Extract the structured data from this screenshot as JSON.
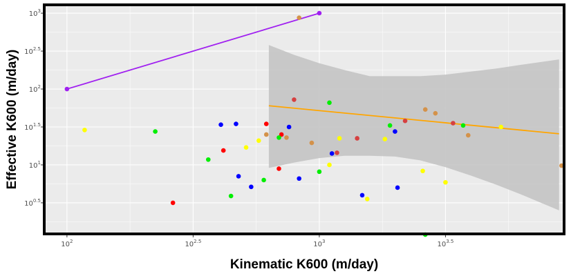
{
  "chart_data": {
    "type": "scatter",
    "title": "",
    "xlabel": "Kinematic K600 (m/day)",
    "ylabel": "Effective K600 (m/day)",
    "x_scale": "log10",
    "y_scale": "log10",
    "xlim_log10": [
      1.91,
      3.97
    ],
    "ylim_log10": [
      0.09,
      3.11
    ],
    "grid": true,
    "legend": "none",
    "x_ticks": [
      {
        "value_log10": 2.0,
        "base": "10",
        "exp": "2"
      },
      {
        "value_log10": 2.5,
        "base": "10",
        "exp": "2.5"
      },
      {
        "value_log10": 3.0,
        "base": "10",
        "exp": "3"
      },
      {
        "value_log10": 3.5,
        "base": "10",
        "exp": "3.5"
      }
    ],
    "y_ticks": [
      {
        "value_log10": 0.5,
        "base": "10",
        "exp": "0.5"
      },
      {
        "value_log10": 1.0,
        "base": "10",
        "exp": "1"
      },
      {
        "value_log10": 1.5,
        "base": "10",
        "exp": "1.5"
      },
      {
        "value_log10": 2.0,
        "base": "10",
        "exp": "2"
      },
      {
        "value_log10": 2.5,
        "base": "10",
        "exp": "2.5"
      },
      {
        "value_log10": 3.0,
        "base": "10",
        "exp": "3"
      }
    ],
    "colors": {
      "panel": "#ebebeb",
      "grid": "#ffffff",
      "one_to_one": "#a020f0",
      "fit_line": "#ffa500",
      "ribbon": "#c4c4c4"
    },
    "one_to_one_line": {
      "x_log10": [
        2.0,
        3.0
      ],
      "y_log10": [
        2.0,
        3.0
      ]
    },
    "fit": {
      "x_log10": [
        2.8,
        3.95
      ],
      "y_log10": [
        1.78,
        1.41
      ],
      "band": [
        {
          "x": 2.8,
          "lo": 0.96,
          "hi": 2.58
        },
        {
          "x": 2.9,
          "lo": 1.03,
          "hi": 2.45
        },
        {
          "x": 3.0,
          "lo": 1.09,
          "hi": 2.34
        },
        {
          "x": 3.1,
          "lo": 1.12,
          "hi": 2.25
        },
        {
          "x": 3.2,
          "lo": 1.12,
          "hi": 2.17
        },
        {
          "x": 3.3,
          "lo": 1.11,
          "hi": 2.17
        },
        {
          "x": 3.4,
          "lo": 1.06,
          "hi": 2.17
        },
        {
          "x": 3.5,
          "lo": 0.97,
          "hi": 2.19
        },
        {
          "x": 3.6,
          "lo": 0.86,
          "hi": 2.23
        },
        {
          "x": 3.7,
          "lo": 0.74,
          "hi": 2.27
        },
        {
          "x": 3.8,
          "lo": 0.61,
          "hi": 2.32
        },
        {
          "x": 3.95,
          "lo": 0.4,
          "hi": 2.39
        }
      ]
    },
    "series": [
      {
        "color": "#a020f0",
        "points": [
          [
            2.0,
            2.0
          ],
          [
            3.0,
            3.0
          ]
        ]
      },
      {
        "color": "#ff0000",
        "points": [
          [
            2.42,
            0.5
          ],
          [
            2.62,
            1.19
          ],
          [
            2.79,
            1.54
          ],
          [
            2.84,
            0.95
          ],
          [
            2.85,
            1.4
          ]
        ]
      },
      {
        "color": "#0000ff",
        "points": [
          [
            2.61,
            1.53
          ],
          [
            2.67,
            1.54
          ],
          [
            2.68,
            0.85
          ],
          [
            2.73,
            0.71
          ],
          [
            2.88,
            1.5
          ],
          [
            2.92,
            0.82
          ],
          [
            3.05,
            1.15
          ],
          [
            3.17,
            0.6
          ],
          [
            3.3,
            1.44
          ],
          [
            3.31,
            0.7
          ]
        ]
      },
      {
        "color": "#00ee00",
        "points": [
          [
            2.35,
            1.44
          ],
          [
            2.56,
            1.07
          ],
          [
            2.65,
            0.59
          ],
          [
            2.78,
            0.8
          ],
          [
            2.84,
            1.36
          ],
          [
            3.0,
            0.91
          ],
          [
            3.04,
            1.82
          ],
          [
            3.28,
            1.52
          ],
          [
            3.42,
            0.08
          ],
          [
            3.57,
            1.52
          ]
        ]
      },
      {
        "color": "#ffff00",
        "points": [
          [
            2.07,
            1.46
          ],
          [
            2.71,
            1.23
          ],
          [
            2.76,
            1.32
          ],
          [
            3.04,
            1.0
          ],
          [
            3.08,
            1.35
          ],
          [
            3.19,
            0.55
          ],
          [
            3.26,
            1.34
          ],
          [
            3.41,
            0.92
          ],
          [
            3.5,
            0.77
          ],
          [
            3.72,
            1.5
          ]
        ]
      },
      {
        "color": "#d64040",
        "points": [
          [
            2.9,
            1.86
          ],
          [
            3.07,
            1.16
          ],
          [
            3.15,
            1.35
          ],
          [
            3.34,
            1.58
          ],
          [
            3.53,
            1.55
          ]
        ]
      },
      {
        "color": "#d4924a",
        "points": [
          [
            2.79,
            1.4
          ],
          [
            2.87,
            1.36
          ],
          [
            2.97,
            1.29
          ],
          [
            3.42,
            1.73
          ],
          [
            3.46,
            1.68
          ],
          [
            3.59,
            1.39
          ],
          [
            3.96,
            0.99
          ],
          [
            2.92,
            2.94
          ]
        ]
      }
    ]
  }
}
